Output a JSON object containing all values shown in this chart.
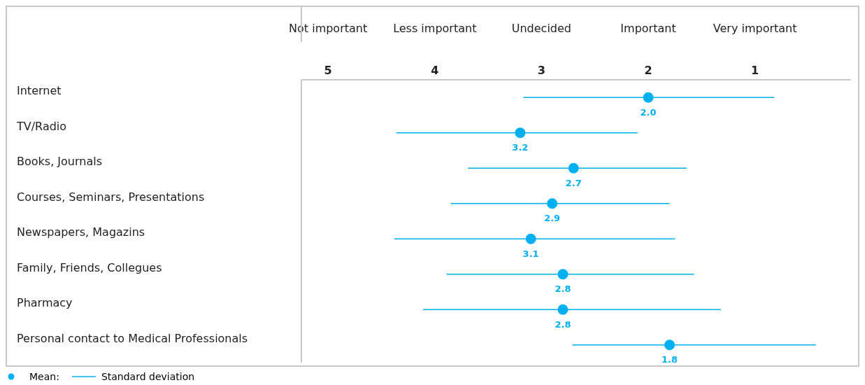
{
  "chart_data": {
    "type": "scatter",
    "orientation": "horizontal",
    "categories": [
      "Internet",
      "TV/Radio",
      "Books, Journals",
      "Courses, Seminars, Presentations",
      "Newspapers, Magazins",
      "Family, Friends, Collegues",
      "Pharmacy",
      "Personal contact to Medical Professionals"
    ],
    "series": [
      {
        "name": "Mean:",
        "color": "#00b0f0",
        "values": [
          2.0,
          3.2,
          2.7,
          2.9,
          3.1,
          2.8,
          2.8,
          1.8
        ],
        "errors": [
          [
            3.17,
            0.82
          ],
          [
            4.36,
            2.1
          ],
          [
            3.69,
            1.64
          ],
          [
            3.85,
            1.8
          ],
          [
            4.38,
            1.75
          ],
          [
            3.89,
            1.57
          ],
          [
            4.11,
            1.32
          ],
          [
            2.71,
            0.43
          ]
        ],
        "value_labels": [
          "2.0",
          "3.2",
          "2.7",
          "2.9",
          "3.1",
          "2.8",
          "2.8",
          "1.8"
        ]
      }
    ],
    "xlim": [
      5.25,
      0.1
    ],
    "xticks": [
      5,
      4,
      3,
      2,
      1
    ],
    "marker": "circle",
    "grid": false,
    "legend": "bottom left",
    "annotations": [
      "Not important",
      "Less important",
      "Undecided",
      "Important",
      "Very important",
      "Standard deviation"
    ]
  }
}
